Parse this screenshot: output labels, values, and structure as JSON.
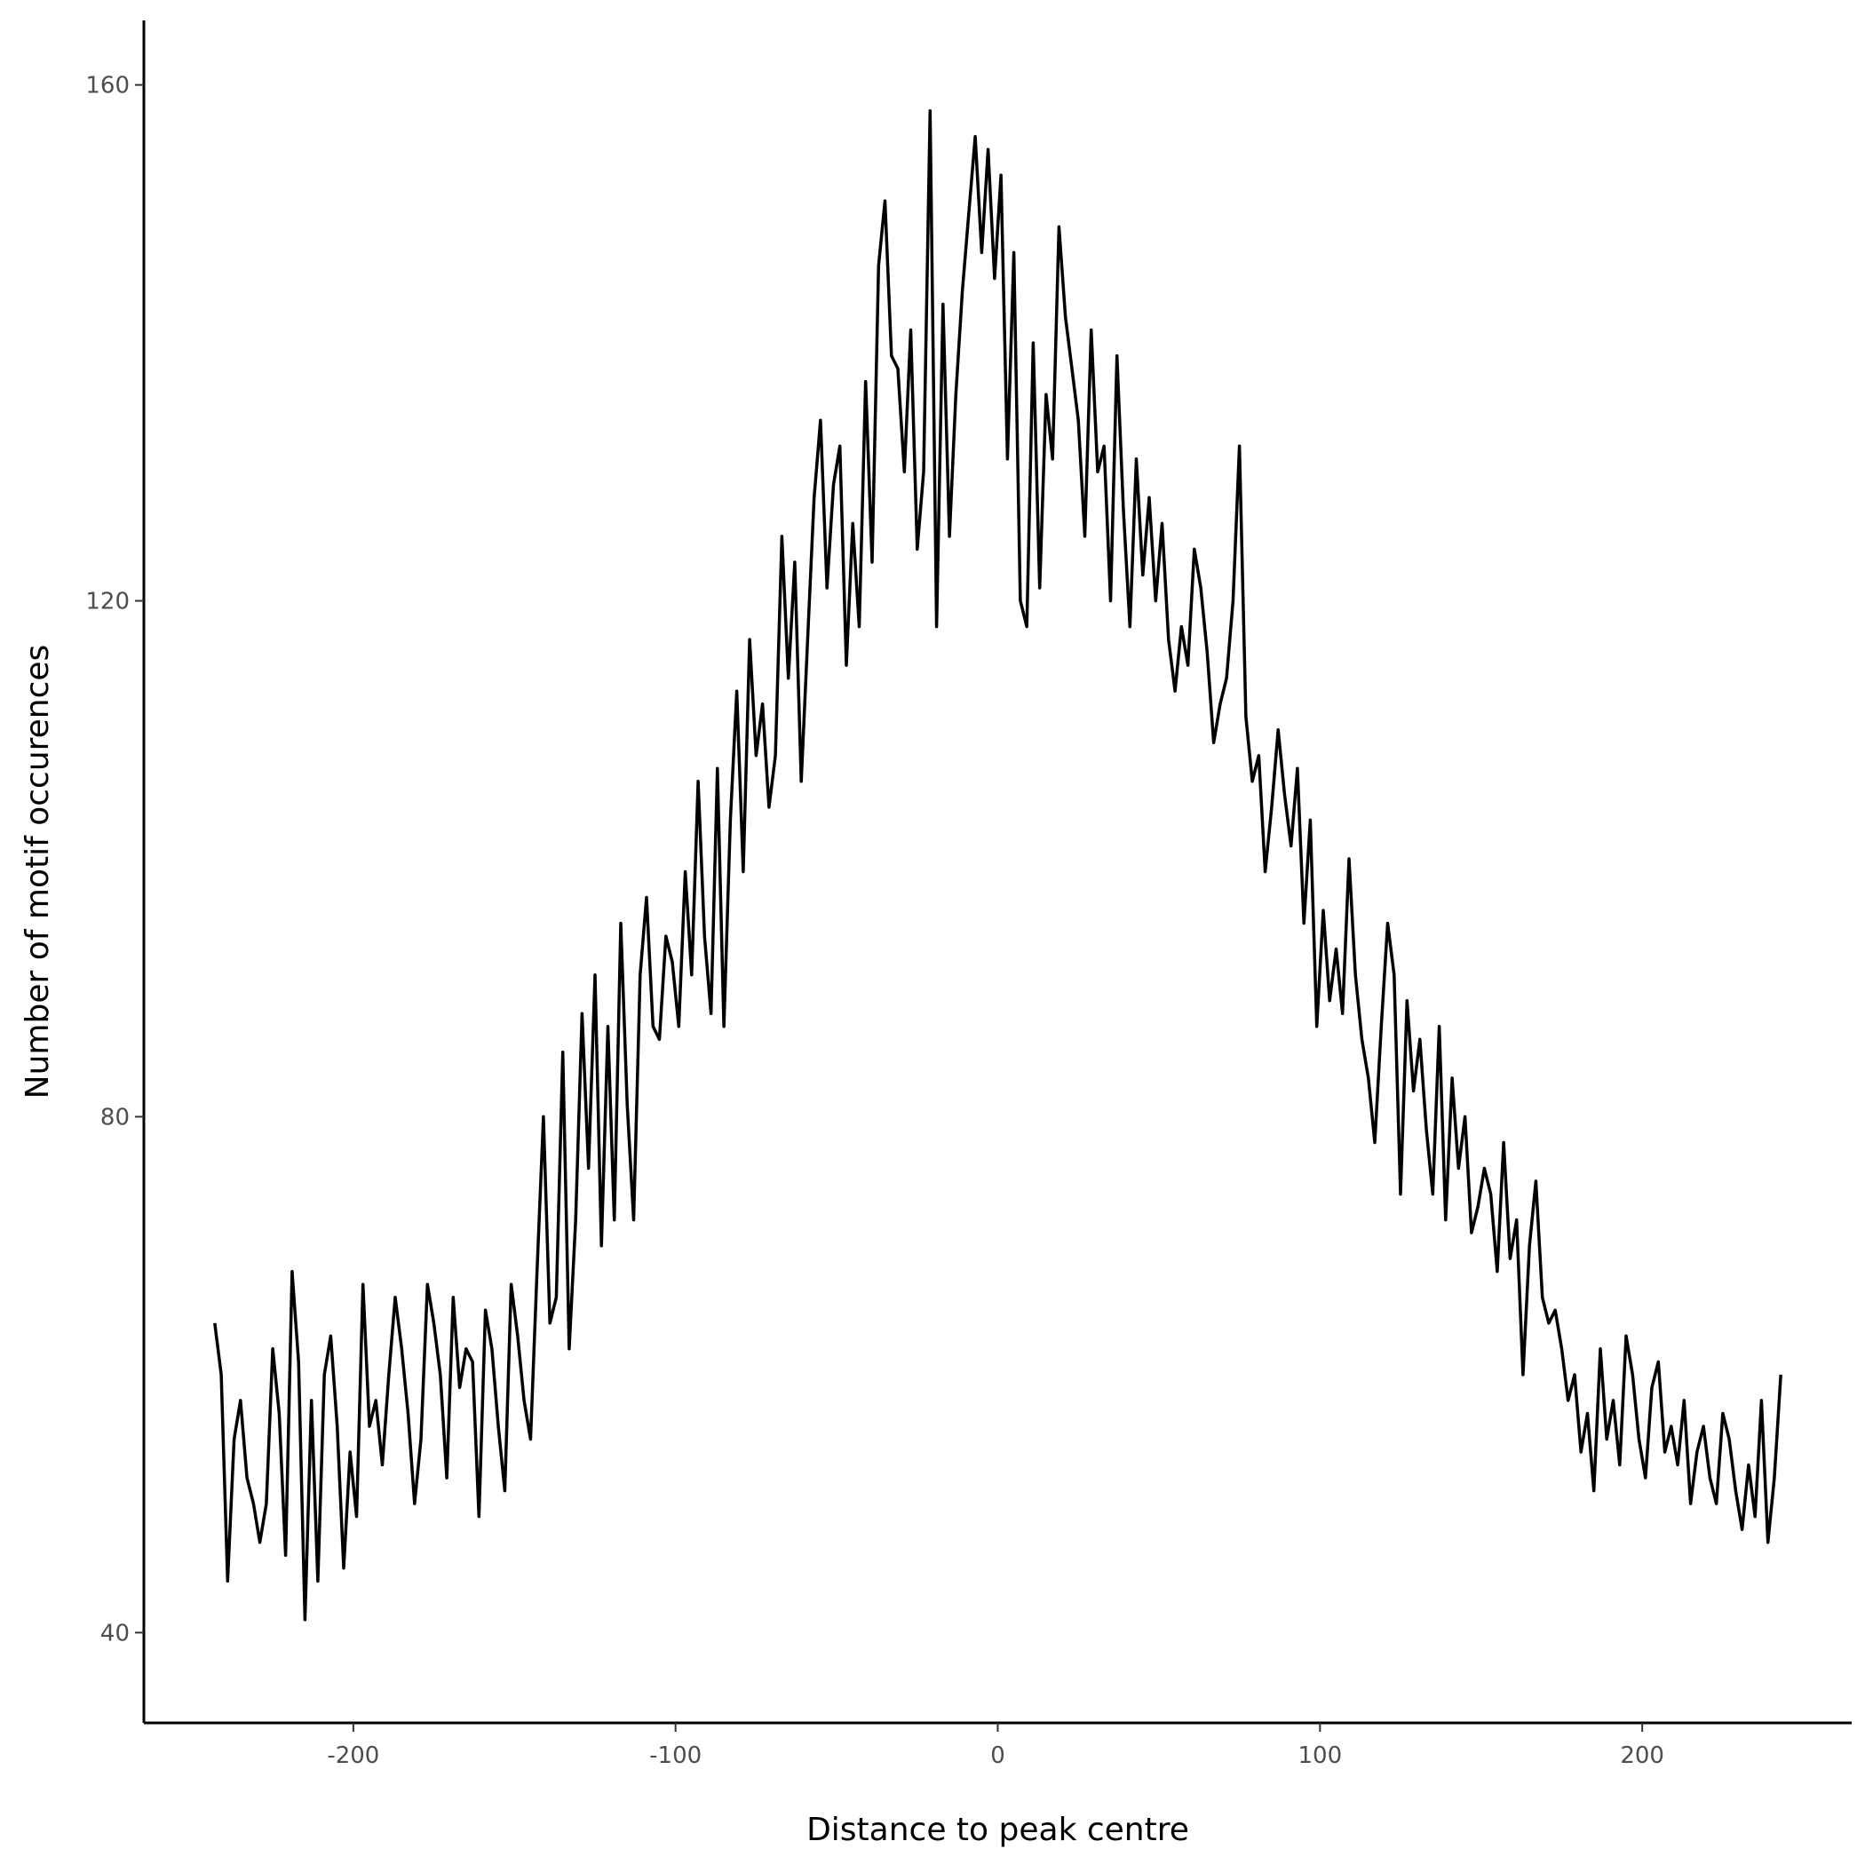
{
  "chart_data": {
    "type": "line",
    "title": "",
    "xlabel": "Distance to peak centre",
    "ylabel": "Number of motif occurences",
    "xlim": [
      -265,
      265
    ],
    "ylim": [
      33,
      165
    ],
    "xticks": [
      -200,
      -100,
      0,
      100,
      200
    ],
    "yticks": [
      40,
      80,
      120,
      160
    ],
    "xtick_labels": [
      "-200",
      "-100",
      "0",
      "100",
      "200"
    ],
    "ytick_labels": [
      "40",
      "80",
      "120",
      "160"
    ],
    "grid": false,
    "legend": "none",
    "series": [
      {
        "color": "#000000",
        "x": [
          -243,
          -241,
          -239,
          -237,
          -235,
          -233,
          -231,
          -229,
          -227,
          -225,
          -223,
          -221,
          -219,
          -217,
          -215,
          -213,
          -211,
          -209,
          -207,
          -205,
          -203,
          -201,
          -199,
          -197,
          -195,
          -193,
          -191,
          -189,
          -187,
          -185,
          -183,
          -181,
          -179,
          -177,
          -175,
          -173,
          -171,
          -169,
          -167,
          -165,
          -163,
          -161,
          -159,
          -157,
          -155,
          -153,
          -151,
          -149,
          -147,
          -145,
          -143,
          -141,
          -139,
          -137,
          -135,
          -133,
          -131,
          -129,
          -127,
          -125,
          -123,
          -121,
          -119,
          -117,
          -115,
          -113,
          -111,
          -109,
          -107,
          -105,
          -103,
          -101,
          -99,
          -97,
          -95,
          -93,
          -91,
          -89,
          -87,
          -85,
          -83,
          -81,
          -79,
          -77,
          -75,
          -73,
          -71,
          -69,
          -67,
          -65,
          -63,
          -61,
          -59,
          -57,
          -55,
          -53,
          -51,
          -49,
          -47,
          -45,
          -43,
          -41,
          -39,
          -37,
          -35,
          -33,
          -31,
          -29,
          -27,
          -25,
          -23,
          -21,
          -19,
          -17,
          -15,
          -13,
          -11,
          -9,
          -7,
          -5,
          -3,
          -1,
          1,
          3,
          5,
          7,
          9,
          11,
          13,
          15,
          17,
          19,
          21,
          23,
          25,
          27,
          29,
          31,
          33,
          35,
          37,
          39,
          41,
          43,
          45,
          47,
          49,
          51,
          53,
          55,
          57,
          59,
          61,
          63,
          65,
          67,
          69,
          71,
          73,
          75,
          77,
          79,
          81,
          83,
          85,
          87,
          89,
          91,
          93,
          95,
          97,
          99,
          101,
          103,
          105,
          107,
          109,
          111,
          113,
          115,
          117,
          119,
          121,
          123,
          125,
          127,
          129,
          131,
          133,
          135,
          137,
          139,
          141,
          143,
          145,
          147,
          149,
          151,
          153,
          155,
          157,
          159,
          161,
          163,
          165,
          167,
          169,
          171,
          173,
          175,
          177,
          179,
          181,
          183,
          185,
          187,
          189,
          191,
          193,
          195,
          197,
          199,
          201,
          203,
          205,
          207,
          209,
          211,
          213,
          215,
          217,
          219,
          221,
          223,
          225,
          227,
          229,
          231,
          233,
          235,
          237,
          239,
          241,
          243
        ],
        "y": [
          64,
          60,
          44,
          55,
          58,
          52,
          50,
          47,
          50,
          62,
          57,
          46,
          68,
          61,
          41,
          58,
          44,
          60,
          63,
          56,
          45,
          54,
          49,
          67,
          56,
          58,
          53,
          60,
          66,
          62,
          57,
          50,
          55,
          67,
          64,
          60,
          52,
          66,
          59,
          62,
          61,
          49,
          65,
          62,
          56,
          51,
          67,
          63,
          58,
          55,
          68,
          80,
          64,
          66,
          85,
          62,
          72,
          88,
          76,
          91,
          70,
          87,
          72,
          95,
          81,
          72,
          91,
          97,
          87,
          86,
          94,
          92,
          87,
          99,
          91,
          106,
          94,
          88,
          107,
          87,
          103,
          113,
          99,
          117,
          108,
          112,
          104,
          108,
          125,
          114,
          123,
          106,
          117,
          128,
          134,
          121,
          129,
          132,
          115,
          126,
          118,
          137,
          123,
          146,
          151,
          139,
          138,
          130,
          141,
          124,
          130,
          158,
          118,
          143,
          125,
          136,
          144,
          150,
          156,
          147,
          155,
          145,
          153,
          131,
          147,
          120,
          118,
          140,
          121,
          136,
          131,
          149,
          142,
          138,
          134,
          125,
          141,
          130,
          132,
          120,
          139,
          127,
          118,
          131,
          122,
          128,
          120,
          126,
          117,
          113,
          118,
          115,
          124,
          121,
          116,
          109,
          112,
          114,
          120,
          132,
          111,
          106,
          108,
          99,
          104,
          110,
          105,
          101,
          107,
          95,
          103,
          87,
          96,
          89,
          93,
          88,
          100,
          91,
          86,
          83,
          78,
          87,
          95,
          91,
          74,
          89,
          82,
          86,
          79,
          74,
          87,
          72,
          83,
          76,
          80,
          71,
          73,
          76,
          74,
          68,
          78,
          69,
          72,
          60,
          70,
          75,
          66,
          64,
          65,
          62,
          58,
          60,
          54,
          57,
          51,
          62,
          55,
          58,
          53,
          63,
          60,
          55,
          52,
          59,
          61,
          54,
          56,
          53,
          58,
          50,
          54,
          56,
          52,
          50,
          57,
          55,
          51,
          48,
          53,
          49,
          58,
          47,
          52,
          60
        ]
      }
    ]
  }
}
